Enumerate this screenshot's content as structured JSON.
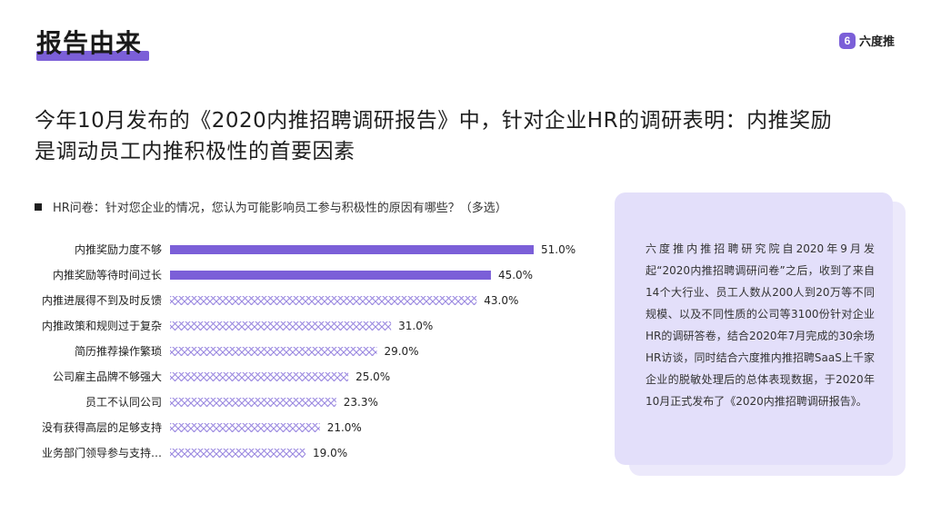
{
  "header": {
    "title": "报告由来",
    "logo_glyph": "6",
    "logo_text": "六度推",
    "accent_color": "#7b5fd8"
  },
  "headline": {
    "line1": "今年10月发布的《2020内推招聘调研报告》中，针对企业HR的调研表明：内推奖励",
    "line2": "是调动员工内推积极性的首要因素"
  },
  "question": "HR问卷：针对您企业的情况，您认为可能影响员工参与积极性的原因有哪些？（多选）",
  "chart_data": {
    "type": "bar",
    "orientation": "horizontal",
    "categories": [
      "内推奖励力度不够",
      "内推奖励等待时间过长",
      "内推进展得不到及时反馈",
      "内推政策和规则过于复杂",
      "简历推荐操作繁琐",
      "公司雇主品牌不够强大",
      "员工不认同公司",
      "没有获得高层的足够支持",
      "业务部门领导参与支持…"
    ],
    "values": [
      51.0,
      45.0,
      43.0,
      31.0,
      29.0,
      25.0,
      23.3,
      21.0,
      19.0
    ],
    "value_labels": [
      "51.0%",
      "45.0%",
      "43.0%",
      "31.0%",
      "29.0%",
      "25.0%",
      "23.3%",
      "21.0%",
      "19.0%"
    ],
    "highlighted": [
      true,
      true,
      false,
      false,
      false,
      false,
      false,
      false,
      false
    ],
    "highlight_color": "#7b5fd8",
    "pattern_color": "#9b89e0",
    "xlim": [
      0,
      51.0
    ]
  },
  "card": {
    "text": "六度推内推招聘研究院自2020年9月发起“2020内推招聘调研问卷”之后，收到了来自14个大行业、员工人数从200人到20万等不同规模、以及不同性质的公司等3100份针对企业HR的调研答卷，结合2020年7月完成的30余场HR访谈，同时结合六度推内推招聘SaaS上千家企业的脱敏处理后的总体表现数据，于2020年10月正式发布了《2020内推招聘调研报告》。"
  }
}
